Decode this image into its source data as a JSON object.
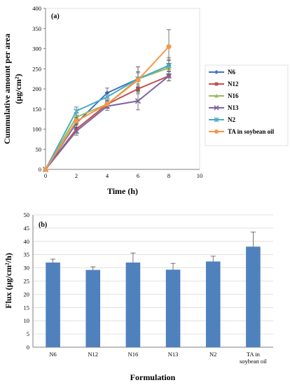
{
  "chart_data": [
    {
      "type": "line",
      "panel_label": "(a)",
      "xlabel": "Time (h)",
      "ylabel_line1": "Cummulative amount per area",
      "ylabel_line2": "(μg/cm²)",
      "xlim": [
        0,
        10
      ],
      "ylim": [
        0,
        400
      ],
      "x_ticks": [
        "0",
        "2",
        "4",
        "6",
        "8",
        "10"
      ],
      "y_ticks": [
        "0",
        "50",
        "100",
        "150",
        "200",
        "250",
        "300",
        "350",
        "400"
      ],
      "grid": false,
      "legend_position": "right",
      "x": [
        0,
        2,
        4,
        6,
        8
      ],
      "series": [
        {
          "name": "N6",
          "color": "#4472c4",
          "marker": "diamond",
          "values": [
            0,
            115,
            190,
            225,
            258
          ],
          "errors": [
            0,
            10,
            12,
            18,
            20
          ]
        },
        {
          "name": "N12",
          "color": "#c0504d",
          "marker": "square",
          "values": [
            0,
            100,
            162,
            200,
            232
          ],
          "errors": [
            0,
            10,
            10,
            12,
            12
          ]
        },
        {
          "name": "N16",
          "color": "#9bbb59",
          "marker": "triangle",
          "values": [
            0,
            130,
            162,
            225,
            252
          ],
          "errors": [
            0,
            10,
            10,
            30,
            18
          ]
        },
        {
          "name": "N13",
          "color": "#8064a2",
          "marker": "x",
          "values": [
            0,
            95,
            157,
            170,
            232
          ],
          "errors": [
            0,
            10,
            10,
            22,
            12
          ]
        },
        {
          "name": "N2",
          "color": "#4bacc6",
          "marker": "star",
          "values": [
            0,
            145,
            180,
            225,
            258
          ],
          "errors": [
            0,
            10,
            10,
            30,
            15
          ]
        },
        {
          "name": "TA in soybean oil",
          "color": "#f79646",
          "marker": "circle",
          "values": [
            0,
            120,
            162,
            222,
            305
          ],
          "errors": [
            0,
            10,
            10,
            18,
            42
          ]
        }
      ]
    },
    {
      "type": "bar",
      "panel_label": "(b)",
      "xlabel": "Formulation",
      "ylabel": "Flux (μg/cm²/h)",
      "ylim": [
        0,
        50
      ],
      "y_ticks": [
        "0",
        "5",
        "10",
        "15",
        "20",
        "25",
        "30",
        "35",
        "40",
        "45",
        "50"
      ],
      "grid": true,
      "bar_color": "#4f81bd",
      "categories": [
        "N6",
        "N12",
        "N16",
        "N13",
        "N2",
        "TA in soybean oil"
      ],
      "category_lines": [
        [
          "N6"
        ],
        [
          "N12"
        ],
        [
          "N16"
        ],
        [
          "N13"
        ],
        [
          "N2"
        ],
        [
          "TA in",
          "soybean oil"
        ]
      ],
      "values": [
        32,
        29.2,
        32,
        29.3,
        32.4,
        38
      ],
      "errors": [
        1.3,
        1.2,
        3.6,
        2.4,
        2,
        5.5
      ]
    }
  ]
}
